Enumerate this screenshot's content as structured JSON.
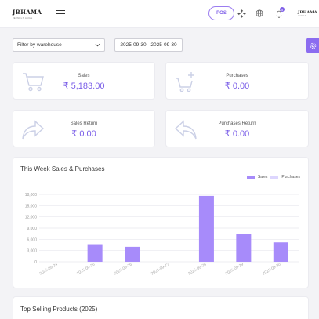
{
  "header": {
    "logo_main": "JBHAMA",
    "logo_sub": "JE WELS ANGE",
    "pos_label": "POS",
    "notification_count": "5",
    "user_logo_main": "JBHAMA",
    "user_logo_sub": "JE WELS"
  },
  "filters": {
    "warehouse_selected": "Filter by warehouse",
    "date_range": "2025-09-30 - 2025-09-30"
  },
  "stats": {
    "sales": {
      "label": "Sales",
      "value": "₹ 5,183.00",
      "icon": "shopping-cart-icon"
    },
    "purchases": {
      "label": "Purchases",
      "value": "₹ 0.00",
      "icon": "cart-plus-icon"
    },
    "sales_return": {
      "label": "Sales Return",
      "value": "₹ 0.00",
      "icon": "arrow-forward-icon"
    },
    "purchases_return": {
      "label": "Purchases Return",
      "value": "₹ 0.00",
      "icon": "arrow-back-icon"
    }
  },
  "colors": {
    "accent": "#8b6cf0",
    "sales_bar": "#a78bfa",
    "purchases_bar": "#ddd6fe"
  },
  "chart": {
    "title": "This Week Sales & Purchases"
  },
  "chart_data": {
    "type": "bar",
    "title": "This Week Sales & Purchases",
    "categories": [
      "2025-09-24",
      "2025-09-25",
      "2025-09-26",
      "2025-09-27",
      "2025-09-28",
      "2025-09-29",
      "2025-09-30"
    ],
    "y_tick_labels": [
      "0",
      "3,000",
      "6,000",
      "9,000",
      "12,000",
      "15,000",
      "18,000"
    ],
    "ylim": [
      0,
      18000
    ],
    "grid": true,
    "legend_position": "top-right",
    "series": [
      {
        "name": "Sales",
        "values": [
          0,
          4700,
          4000,
          0,
          17600,
          7500,
          5183
        ]
      },
      {
        "name": "Purchases",
        "values": [
          0,
          0,
          0,
          0,
          0,
          0,
          0
        ]
      }
    ]
  },
  "top_products": {
    "title": "Top Selling Products (2025)"
  }
}
